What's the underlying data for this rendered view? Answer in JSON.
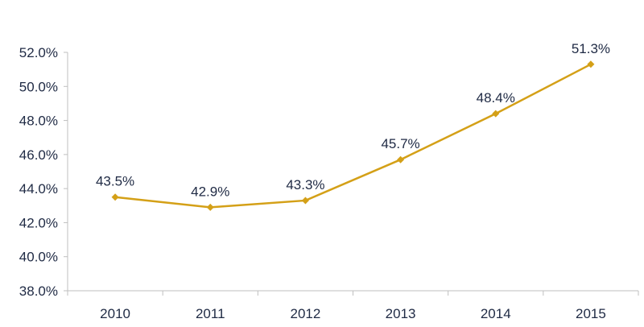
{
  "chart_data": {
    "type": "line",
    "title": "",
    "xlabel": "",
    "ylabel": "",
    "categories": [
      "2010",
      "2011",
      "2012",
      "2013",
      "2014",
      "2015"
    ],
    "series": [
      {
        "values": [
          43.5,
          42.9,
          43.3,
          45.7,
          48.4,
          51.3
        ],
        "data_labels": [
          "43.5%",
          "42.9%",
          "43.3%",
          "45.7%",
          "48.4%",
          "51.3%"
        ],
        "color": "#d4a017",
        "marker": "diamond"
      }
    ],
    "ylim": [
      38.0,
      52.0
    ],
    "y_ticks": [
      38.0,
      40.0,
      42.0,
      44.0,
      46.0,
      48.0,
      50.0,
      52.0
    ],
    "y_tick_labels": [
      "38.0%",
      "40.0%",
      "42.0%",
      "44.0%",
      "46.0%",
      "48.0%",
      "50.0%",
      "52.0%"
    ],
    "grid": false,
    "legend": "none"
  }
}
